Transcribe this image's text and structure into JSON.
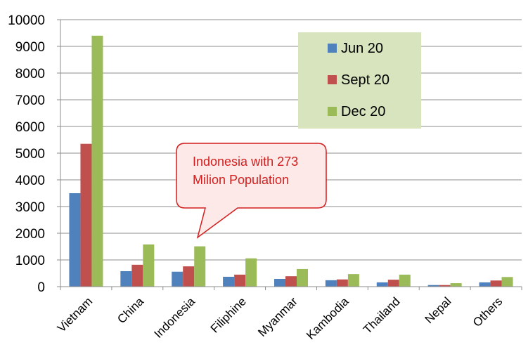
{
  "chart_data": {
    "type": "bar",
    "categories": [
      "Vietnam",
      "China",
      "Indonesia",
      "Filiphine",
      "Myanmar",
      "Kambodia",
      "Thailand",
      "Nepal",
      "Others"
    ],
    "series": [
      {
        "name": "Jun 20",
        "color": "#4f81bd",
        "values": [
          3500,
          580,
          560,
          370,
          290,
          240,
          160,
          60,
          160
        ]
      },
      {
        "name": "Sept 20",
        "color": "#c0504d",
        "values": [
          5350,
          820,
          760,
          450,
          390,
          270,
          260,
          60,
          230
        ]
      },
      {
        "name": "Dec 20",
        "color": "#9bbb59",
        "values": [
          9400,
          1580,
          1510,
          1060,
          660,
          470,
          450,
          130,
          360
        ]
      }
    ],
    "y_ticks": [
      "0",
      "1000",
      "2000",
      "3000",
      "4000",
      "5000",
      "6000",
      "7000",
      "8000",
      "9000",
      "10000"
    ],
    "ylim": [
      0,
      10000
    ],
    "grid": true,
    "legend": {
      "position": "top-right",
      "background": "#d7e4bd"
    },
    "annotation": {
      "lines": [
        "Indonesia with 273",
        "Milion Population"
      ],
      "target_category": "Indonesia",
      "text_color": "#d21f1f",
      "fill": "#fde9e7",
      "border": "#d21f1f"
    }
  }
}
